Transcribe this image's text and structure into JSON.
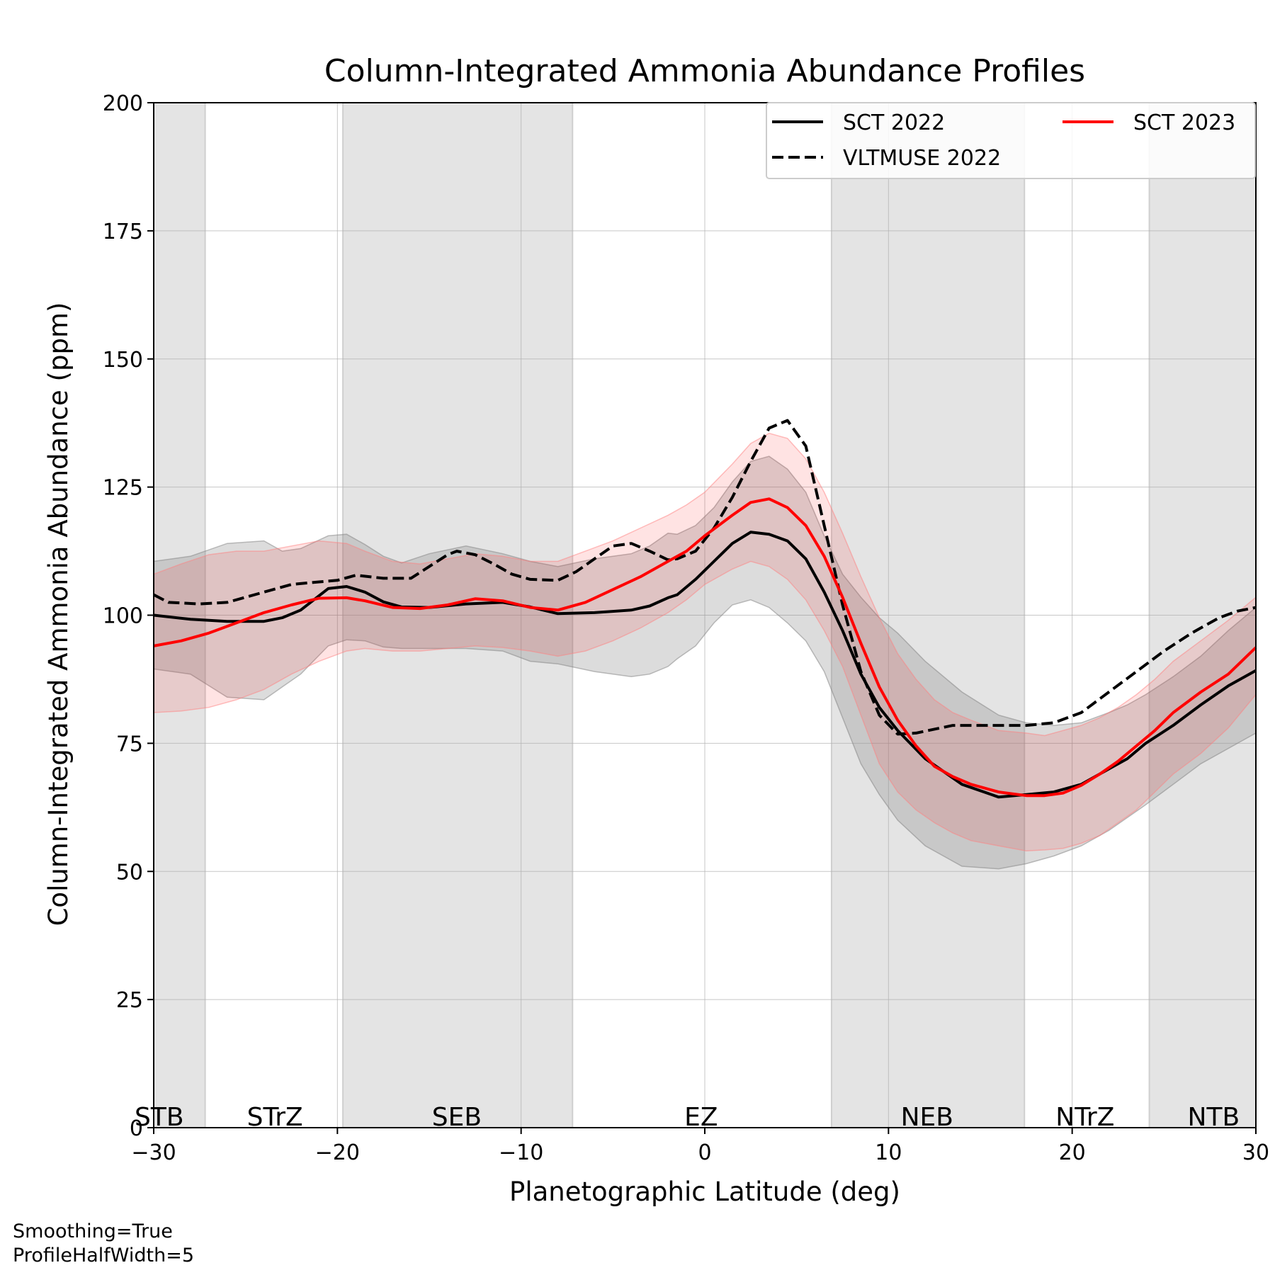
{
  "chart_data": {
    "type": "line",
    "title": "Column-Integrated Ammonia Abundance Profiles",
    "xlabel": "Planetographic Latitude (deg)",
    "ylabel": "Column-Integrated Ammonia Abundance (ppm)",
    "xlim": [
      -30,
      30
    ],
    "ylim": [
      0,
      200
    ],
    "xticks": [
      -30,
      -20,
      -10,
      0,
      10,
      20,
      30
    ],
    "xtick_labels": [
      "−30",
      "−20",
      "−10",
      "0",
      "10",
      "20",
      "30"
    ],
    "yticks": [
      0,
      25,
      50,
      75,
      100,
      125,
      150,
      175,
      200
    ],
    "ytick_labels": [
      "0",
      "25",
      "50",
      "75",
      "100",
      "125",
      "150",
      "175",
      "200"
    ],
    "grid": true,
    "legend_position": "top-right",
    "belts": [
      {
        "from": -30,
        "to": -27.2
      },
      {
        "from": -19.7,
        "to": -7.2
      },
      {
        "from": 6.9,
        "to": 17.4
      },
      {
        "from": 24.2,
        "to": 30
      }
    ],
    "zones": [
      {
        "label": "STB",
        "lat": -29.7
      },
      {
        "label": "STrZ",
        "lat": -23.4
      },
      {
        "label": "SEB",
        "lat": -13.5
      },
      {
        "label": "EZ",
        "lat": -0.2
      },
      {
        "label": "NEB",
        "lat": 12.1
      },
      {
        "label": "NTrZ",
        "lat": 20.7
      },
      {
        "label": "NTB",
        "lat": 27.7
      }
    ],
    "series": [
      {
        "name": "SCT 2022",
        "color": "#000000",
        "style": "solid",
        "x": [
          -30,
          -28,
          -26,
          -24,
          -23,
          -22,
          -20.5,
          -19.5,
          -18.5,
          -17.5,
          -16.5,
          -15,
          -13,
          -11,
          -9.5,
          -8,
          -6,
          -4,
          -3,
          -2,
          -1.5,
          -0.5,
          0.5,
          1.5,
          2.5,
          3.5,
          4.5,
          5.5,
          6.5,
          7.5,
          8.5,
          9.5,
          10.5,
          12,
          14,
          16,
          17.5,
          19,
          20.5,
          22,
          23,
          24,
          25.5,
          27,
          28.5,
          30
        ],
        "y": [
          100,
          99.2,
          98.8,
          98.8,
          99.5,
          101,
          105.2,
          105.6,
          104.5,
          102.6,
          101.6,
          101.5,
          102.2,
          102.5,
          101.6,
          100.3,
          100.5,
          101,
          101.8,
          103.4,
          104,
          107,
          110.5,
          114,
          116.2,
          115.8,
          114.5,
          111,
          104.5,
          97,
          88.5,
          82,
          77.5,
          72,
          67,
          64.5,
          65,
          65.5,
          67,
          70,
          72,
          75,
          78.5,
          82.5,
          86.2,
          89.2
        ],
        "band_upper": [
          110.5,
          111.5,
          114,
          114.5,
          112.5,
          113,
          115.5,
          115.8,
          113.8,
          111.5,
          110.2,
          112,
          113.5,
          112,
          110.5,
          109.5,
          111,
          112,
          113.5,
          116,
          115.8,
          117.5,
          121,
          126,
          130,
          131,
          128.5,
          124,
          115.5,
          108,
          103.5,
          99.5,
          96.5,
          91,
          85,
          80.5,
          79,
          78.5,
          79,
          81,
          82.5,
          84.5,
          88,
          92,
          97,
          101.5
        ],
        "band_lower": [
          89.5,
          88.5,
          84,
          83.5,
          86,
          88.5,
          94,
          95.2,
          95,
          93.8,
          93.5,
          93.5,
          93.5,
          93,
          91,
          90.5,
          89,
          88,
          88.5,
          90,
          91.5,
          94,
          98.5,
          102,
          103,
          101.5,
          98.5,
          95,
          89,
          80,
          71,
          65,
          60,
          55,
          51,
          50.5,
          51.5,
          53,
          55,
          58,
          60.5,
          63,
          67,
          71,
          74,
          77
        ]
      },
      {
        "name": "VLTMUSE 2022",
        "color": "#000000",
        "style": "dashed",
        "x": [
          -30,
          -29.2,
          -27.5,
          -26,
          -25,
          -24,
          -22.5,
          -21,
          -20,
          -19,
          -17.5,
          -16,
          -15,
          -14,
          -13.5,
          -12.5,
          -11.5,
          -10.5,
          -9.5,
          -8,
          -7,
          -6,
          -5,
          -4,
          -3,
          -2,
          -1.5,
          -0.5,
          0.5,
          1.5,
          2.5,
          3.5,
          4.5,
          5.5,
          6.5,
          7.5,
          8.5,
          9.5,
          10.5,
          11.5,
          13.5,
          15.5,
          17.5,
          19,
          20.5,
          22,
          23.5,
          25,
          26.5,
          28,
          29,
          30
        ],
        "y": [
          104,
          102.5,
          102.2,
          102.5,
          103.5,
          104.5,
          106,
          106.5,
          106.8,
          107.8,
          107.2,
          107.2,
          109.5,
          111.8,
          112.5,
          111.8,
          110,
          108,
          107,
          106.8,
          108.5,
          111,
          113.5,
          114,
          112.5,
          110.8,
          111,
          112.5,
          117,
          123,
          130,
          136.5,
          138,
          133,
          117.5,
          102,
          89,
          80.5,
          76.8,
          77,
          78.5,
          78.5,
          78.5,
          79,
          81,
          85,
          89,
          93,
          96.5,
          99.5,
          100.8,
          101.5
        ],
        "band_upper": [
          null
        ],
        "band_lower": [
          null
        ]
      },
      {
        "name": "SCT 2023",
        "color": "#ff0000",
        "style": "solid",
        "x": [
          -30,
          -28.5,
          -27,
          -25.5,
          -24,
          -22.5,
          -21,
          -19.5,
          -18.5,
          -17,
          -15.5,
          -14,
          -12.5,
          -11,
          -9.5,
          -8,
          -6.5,
          -5,
          -3.5,
          -2,
          -1,
          0,
          1.5,
          2.5,
          3.5,
          4.5,
          5.5,
          6.5,
          7.5,
          8.5,
          9.5,
          10.5,
          11.5,
          12.5,
          13.5,
          14.5,
          16,
          17.5,
          18.5,
          19.5,
          20.5,
          21.5,
          22.5,
          23.5,
          24.5,
          25.5,
          27,
          28.5,
          30
        ],
        "y": [
          94,
          95,
          96.5,
          98.5,
          100.5,
          102,
          103.3,
          103.4,
          102.8,
          101.5,
          101.3,
          102,
          103.2,
          102.8,
          101.5,
          101,
          102.5,
          105,
          107.5,
          110.5,
          112.5,
          115.5,
          119.5,
          122,
          122.7,
          121,
          117.5,
          111.5,
          103.5,
          94.5,
          86,
          79.5,
          74.5,
          70.5,
          68.5,
          67,
          65.5,
          64.8,
          64.8,
          65.3,
          66.8,
          69,
          71.5,
          74.5,
          77.5,
          81,
          85,
          88.5,
          93.7
        ],
        "band_upper": [
          108,
          110,
          111.8,
          112.5,
          112.5,
          113.5,
          114.5,
          114,
          112.5,
          110.5,
          110,
          111,
          112,
          111.5,
          110.5,
          110.5,
          112.5,
          114.5,
          117,
          119.5,
          121.5,
          124,
          129.5,
          133.5,
          135.5,
          134.5,
          130.5,
          124,
          116,
          107.5,
          99.5,
          92.5,
          87.5,
          83.5,
          81,
          79.5,
          77.5,
          77,
          76.5,
          77.5,
          78.5,
          80,
          82,
          84.5,
          87.5,
          91,
          95,
          99,
          103.5
        ],
        "band_lower": [
          81,
          81.3,
          82,
          83.5,
          85.5,
          88.5,
          91,
          93,
          93.5,
          93,
          93,
          93.5,
          94,
          93.7,
          93,
          92,
          93,
          95,
          97.5,
          100.5,
          103,
          106,
          109,
          110.5,
          109.5,
          107,
          103,
          97,
          90,
          80.5,
          71,
          65.5,
          62,
          59.5,
          57.5,
          56,
          55,
          54,
          54.2,
          54.5,
          55.5,
          57,
          59.5,
          62,
          65.5,
          69,
          73,
          78,
          84.5
        ]
      }
    ]
  },
  "legend": [
    {
      "name": "SCT 2022",
      "style": "solid",
      "color": "#000000"
    },
    {
      "name": "VLTMUSE 2022",
      "style": "dashed",
      "color": "#000000"
    },
    {
      "name": "SCT 2023",
      "style": "solid",
      "color": "#ff0000"
    }
  ],
  "footnote": {
    "line1": "Smoothing=True",
    "line2": "ProfileHalfWidth=5"
  }
}
